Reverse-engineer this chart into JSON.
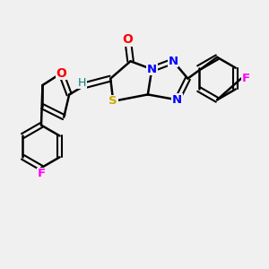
{
  "background_color": "#f0f0f0",
  "bond_color": "#000000",
  "atom_colors": {
    "O": "#ff0000",
    "N": "#0000ff",
    "S": "#ccaa00",
    "F_top": "#ff00ff",
    "F_bottom": "#ff00ff",
    "H": "#008080",
    "C": "#000000"
  },
  "figsize": [
    3.0,
    3.0
  ],
  "dpi": 100
}
